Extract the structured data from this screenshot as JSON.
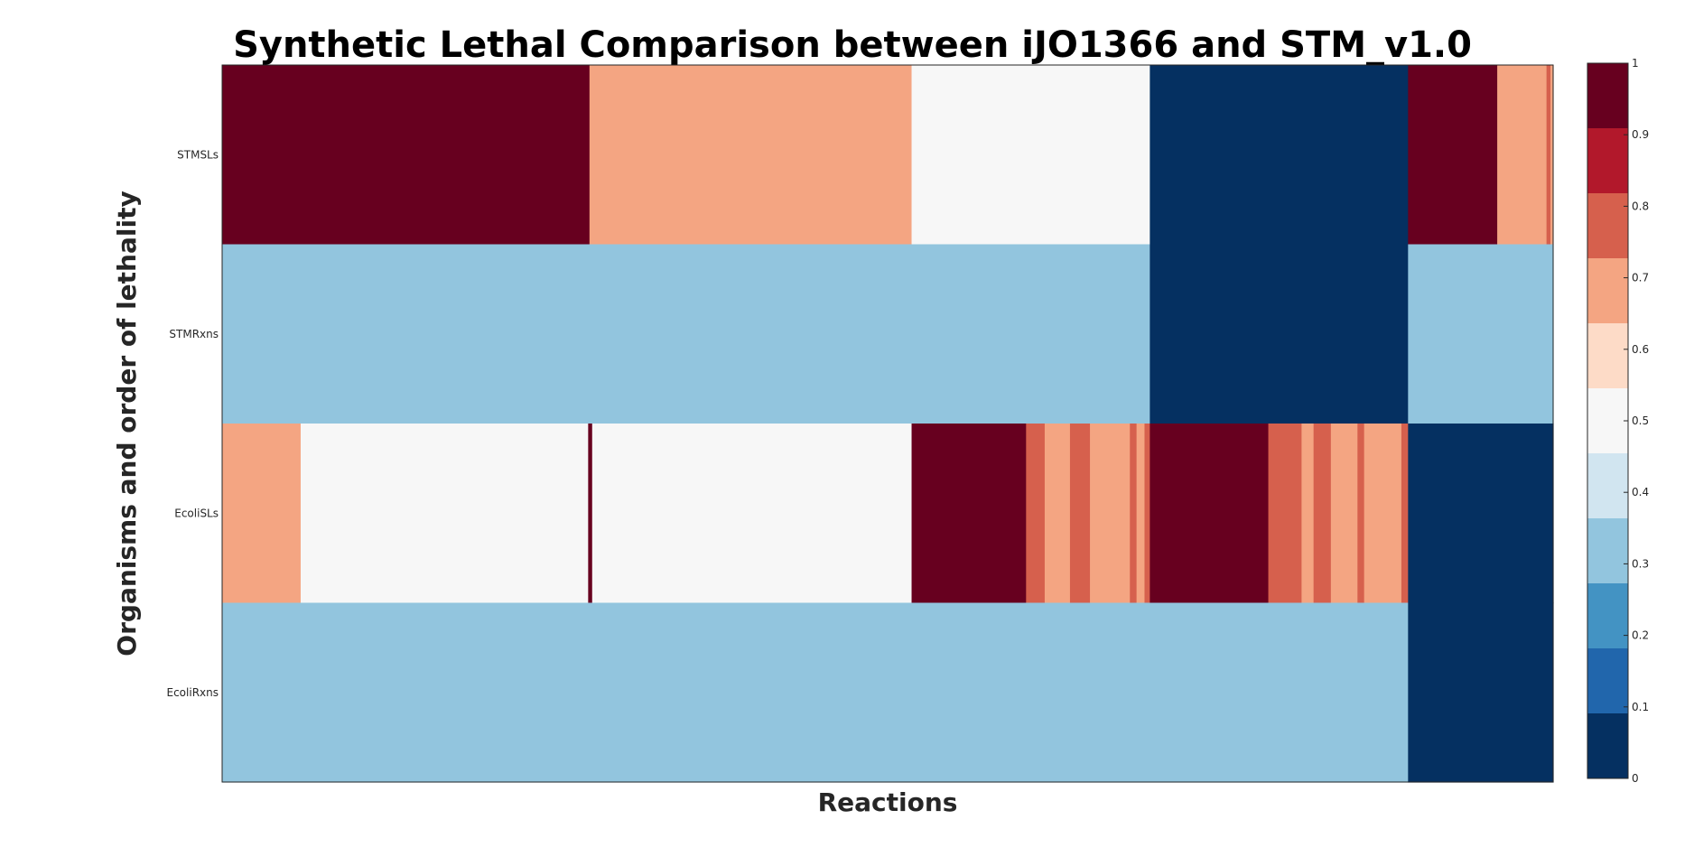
{
  "chart_data": {
    "type": "heatmap",
    "title": "Synthetic Lethal Comparison between iJO1366 and STM_v1.0",
    "xlabel": "Reactions",
    "ylabel": "Organisms and order of lethality",
    "rows": [
      "STMSLs",
      "STMRxns",
      "EcoliSLs",
      "EcoliRxns"
    ],
    "n_columns": 1000,
    "value_range": [
      0,
      1
    ],
    "colormap": {
      "bins": [
        {
          "from": 0.0,
          "to": 0.1,
          "color": "#053061"
        },
        {
          "from": 0.1,
          "to": 0.2,
          "color": "#2166ac"
        },
        {
          "from": 0.2,
          "to": 0.3,
          "color": "#4393c3"
        },
        {
          "from": 0.3,
          "to": 0.4,
          "color": "#92c5de"
        },
        {
          "from": 0.4,
          "to": 0.5,
          "color": "#d1e5f0"
        },
        {
          "from": 0.5,
          "to": 0.6,
          "color": "#f7f7f7"
        },
        {
          "from": 0.6,
          "to": 0.7,
          "color": "#fddbc7"
        },
        {
          "from": 0.7,
          "to": 0.8,
          "color": "#f4a582"
        },
        {
          "from": 0.8,
          "to": 0.9,
          "color": "#d6604d"
        },
        {
          "from": 0.9,
          "to": 1.0,
          "color": "#b2182b"
        },
        {
          "from": 1.0,
          "to": 1.0,
          "color": "#67001f"
        }
      ],
      "ticks": [
        "0",
        "0.1",
        "0.2",
        "0.3",
        "0.4",
        "0.5",
        "0.6",
        "0.7",
        "0.8",
        "0.9",
        "1"
      ]
    },
    "cells": [
      {
        "row": "STMSLs",
        "segments": [
          {
            "start": 0,
            "end": 276,
            "value": 1
          },
          {
            "start": 276,
            "end": 518,
            "value": 0.75
          },
          {
            "start": 518,
            "end": 697,
            "value": 0.55
          },
          {
            "start": 697,
            "end": 891,
            "value": 0
          },
          {
            "start": 891,
            "end": 958,
            "value": 1
          },
          {
            "start": 958,
            "end": 995,
            "value": 0.75
          },
          {
            "start": 995,
            "end": 998,
            "value": 0.85
          },
          {
            "start": 998,
            "end": 1000,
            "value": 0.75
          }
        ]
      },
      {
        "row": "STMRxns",
        "segments": [
          {
            "start": 0,
            "end": 697,
            "value": 0.35
          },
          {
            "start": 697,
            "end": 891,
            "value": 0
          },
          {
            "start": 891,
            "end": 1000,
            "value": 0.35
          }
        ]
      },
      {
        "row": "EcoliSLs",
        "segments": [
          {
            "start": 0,
            "end": 59,
            "value": 0.75
          },
          {
            "start": 59,
            "end": 275,
            "value": 0.55
          },
          {
            "start": 275,
            "end": 278,
            "value": 1
          },
          {
            "start": 278,
            "end": 518,
            "value": 0.55
          },
          {
            "start": 518,
            "end": 604,
            "value": 1
          },
          {
            "start": 604,
            "end": 618,
            "value": 0.85
          },
          {
            "start": 618,
            "end": 637,
            "value": 0.75
          },
          {
            "start": 637,
            "end": 652,
            "value": 0.85
          },
          {
            "start": 652,
            "end": 682,
            "value": 0.75
          },
          {
            "start": 682,
            "end": 687,
            "value": 0.85
          },
          {
            "start": 687,
            "end": 693,
            "value": 0.75
          },
          {
            "start": 693,
            "end": 697,
            "value": 0.85
          },
          {
            "start": 697,
            "end": 786,
            "value": 1
          },
          {
            "start": 786,
            "end": 811,
            "value": 0.85
          },
          {
            "start": 811,
            "end": 820,
            "value": 0.75
          },
          {
            "start": 820,
            "end": 833,
            "value": 0.85
          },
          {
            "start": 833,
            "end": 853,
            "value": 0.75
          },
          {
            "start": 853,
            "end": 858,
            "value": 0.85
          },
          {
            "start": 858,
            "end": 886,
            "value": 0.75
          },
          {
            "start": 886,
            "end": 891,
            "value": 0.85
          },
          {
            "start": 891,
            "end": 1000,
            "value": 0
          }
        ]
      },
      {
        "row": "EcoliRxns",
        "segments": [
          {
            "start": 0,
            "end": 891,
            "value": 0.35
          },
          {
            "start": 891,
            "end": 1000,
            "value": 0
          }
        ]
      }
    ]
  }
}
